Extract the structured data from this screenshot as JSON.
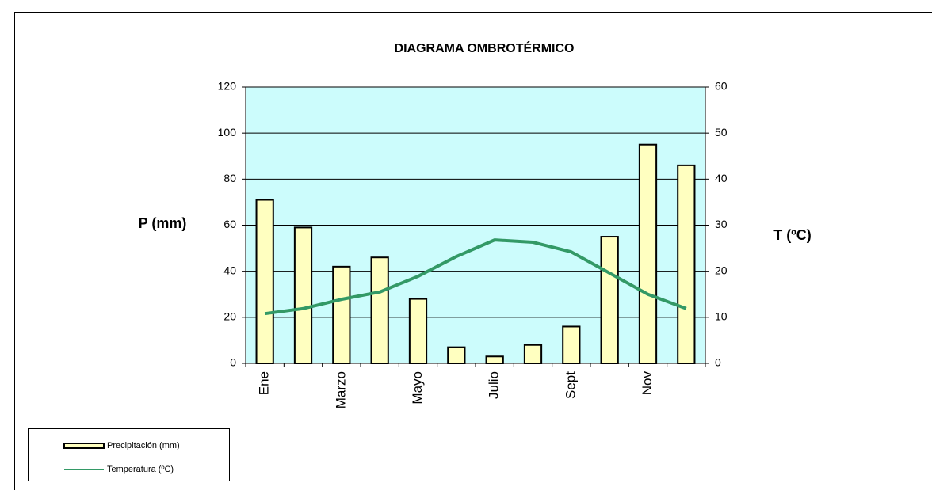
{
  "chart_data": {
    "type": "bar",
    "title": "DIAGRAMA OMBROTÉRMICO",
    "y_label": "P (mm)",
    "y2_label": "T (ºC)",
    "categories": [
      "Ene",
      null,
      "Marzo",
      null,
      "Mayo",
      null,
      "Julio",
      null,
      "Sept",
      null,
      "Nov",
      null
    ],
    "series": [
      {
        "name": "Precipitación (mm)",
        "type": "bar",
        "color": "#ffffc0",
        "values": [
          71,
          59,
          42,
          46,
          28,
          7,
          3,
          8,
          16,
          55,
          95,
          86
        ]
      },
      {
        "name": "Temperatura (ºC)",
        "type": "line",
        "axis": "y2",
        "color": "#339966",
        "values": [
          10.8,
          11.9,
          13.9,
          15.5,
          18.9,
          23.2,
          26.8,
          26.3,
          24.2,
          19.6,
          15,
          11.9
        ]
      }
    ],
    "ylim": [
      0,
      120
    ],
    "yticks": [
      0,
      20,
      40,
      60,
      80,
      100,
      120
    ],
    "y2lim": [
      0,
      60
    ],
    "y2ticks": [
      0,
      10,
      20,
      30,
      40,
      50,
      60
    ],
    "grid": true,
    "plot_background": "#ccfcfc",
    "legend": "bottom-left"
  }
}
